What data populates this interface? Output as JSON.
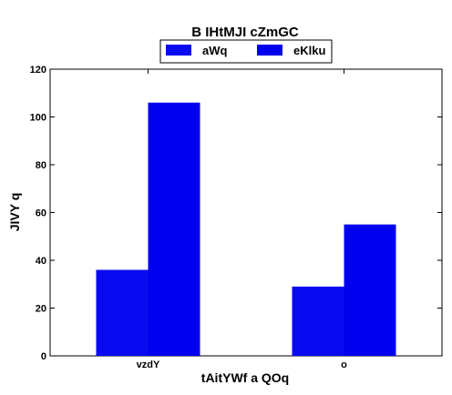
{
  "chart_data": {
    "type": "bar",
    "title": "B IHtMJI cZmGC",
    "xlabel": "tAitYWf a  QOq",
    "ylabel": "JIVY q",
    "categories": [
      "vzdY",
      "o"
    ],
    "series": [
      {
        "name": "aWq",
        "values": [
          36,
          29
        ],
        "color": "#0a0af0"
      },
      {
        "name": "eKlku",
        "values": [
          106,
          55
        ],
        "color": "#0000ee"
      }
    ],
    "ylim": [
      0,
      120
    ],
    "yticks": [
      0,
      20,
      40,
      60,
      80,
      100,
      120
    ],
    "grid": false,
    "legend_position": "top-center"
  }
}
